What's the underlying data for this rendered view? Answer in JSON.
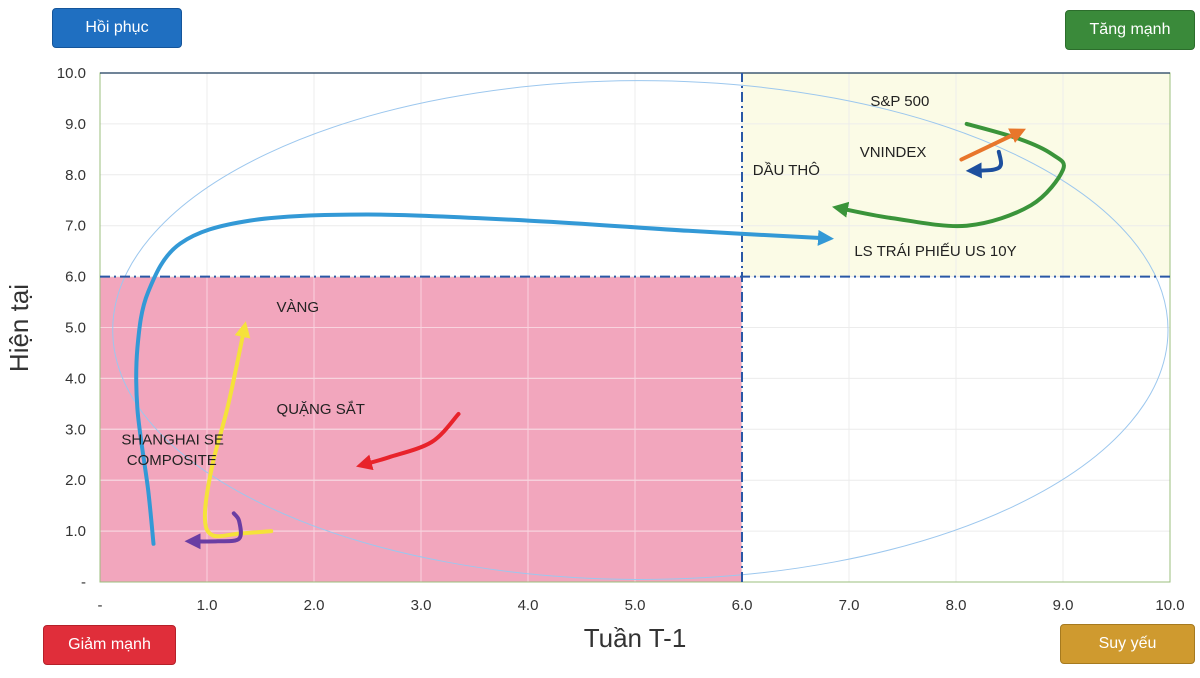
{
  "quadrants": {
    "top_left": "Hồi phục",
    "top_right": "Tăng mạnh",
    "bottom_left": "Giảm mạnh",
    "bottom_right": "Suy yếu"
  },
  "colors": {
    "top_left": "#1f6fc1",
    "top_right": "#3a8a3a",
    "bottom_left": "#e02e3a",
    "bottom_right": "#cf9a2f",
    "pink_region": "#f2a6bd",
    "yellow_region": "#fbfbe6"
  },
  "chart_data": {
    "type": "line",
    "xlabel": "Tuần T-1",
    "ylabel": "Hiện tại",
    "xlim": [
      0,
      10
    ],
    "ylim": [
      0,
      10
    ],
    "x_ticks": [
      "-",
      "1.0",
      "2.0",
      "3.0",
      "4.0",
      "5.0",
      "6.0",
      "7.0",
      "8.0",
      "9.0",
      "10.0"
    ],
    "y_ticks": [
      "-",
      "1.0",
      "2.0",
      "3.0",
      "4.0",
      "5.0",
      "6.0",
      "7.0",
      "8.0",
      "9.0",
      "10.0"
    ],
    "grid": true,
    "divider": 6.0,
    "series": [
      {
        "name": "DẦU THÔ",
        "color": "#3399d6",
        "points": [
          [
            0.5,
            0.75
          ],
          [
            0.45,
            1.8
          ],
          [
            0.35,
            3.4
          ],
          [
            0.35,
            4.6
          ],
          [
            0.45,
            5.7
          ],
          [
            0.75,
            6.65
          ],
          [
            1.4,
            7.1
          ],
          [
            2.5,
            7.22
          ],
          [
            4.0,
            7.1
          ],
          [
            5.5,
            6.9
          ],
          [
            6.8,
            6.75
          ]
        ]
      },
      {
        "name": "LS TRÁI PHIẾU US 10Y",
        "color": "#3a943a",
        "points": [
          [
            8.1,
            9.0
          ],
          [
            8.6,
            8.7
          ],
          [
            8.9,
            8.4
          ],
          [
            9.0,
            8.1
          ],
          [
            8.7,
            7.4
          ],
          [
            8.1,
            7.0
          ],
          [
            7.4,
            7.15
          ],
          [
            6.9,
            7.35
          ]
        ]
      },
      {
        "name": "S&P 500",
        "color": "#e8762b",
        "points": [
          [
            8.05,
            8.3
          ],
          [
            8.3,
            8.55
          ],
          [
            8.6,
            8.85
          ]
        ]
      },
      {
        "name": "VNINDEX",
        "color": "#1d4f9e",
        "points": [
          [
            8.4,
            8.45
          ],
          [
            8.42,
            8.2
          ],
          [
            8.35,
            8.1
          ],
          [
            8.15,
            8.08
          ]
        ]
      },
      {
        "name": "VÀNG",
        "color": "#f5e23a",
        "points": [
          [
            1.6,
            1.0
          ],
          [
            1.3,
            0.95
          ],
          [
            1.05,
            0.92
          ],
          [
            0.98,
            1.3
          ],
          [
            1.05,
            2.3
          ],
          [
            1.2,
            3.5
          ],
          [
            1.35,
            5.0
          ]
        ]
      },
      {
        "name": "QUẶNG SẮT",
        "color": "#e8232b",
        "points": [
          [
            3.35,
            3.3
          ],
          [
            3.1,
            2.75
          ],
          [
            2.7,
            2.45
          ],
          [
            2.45,
            2.3
          ]
        ]
      },
      {
        "name": "SHANGHAI SE COMPOSITE",
        "color": "#6a3da3",
        "points": [
          [
            1.25,
            1.35
          ],
          [
            1.3,
            1.2
          ],
          [
            1.3,
            0.85
          ],
          [
            1.1,
            0.8
          ],
          [
            0.85,
            0.8
          ]
        ]
      }
    ],
    "annotations": [
      {
        "label": "S&P 500",
        "x": 7.2,
        "y": 9.35
      },
      {
        "label": "VNINDEX",
        "x": 7.1,
        "y": 8.35
      },
      {
        "label": "DẦU THÔ",
        "x": 6.1,
        "y": 8.0
      },
      {
        "label": "LS TRÁI PHIẾU US 10Y",
        "x": 7.05,
        "y": 6.4
      },
      {
        "label": "VÀNG",
        "x": 1.65,
        "y": 5.3
      },
      {
        "label": "QUẶNG SẮT",
        "x": 1.65,
        "y": 3.3
      },
      {
        "label": "SHANGHAI SE",
        "x": 0.2,
        "y": 2.7
      },
      {
        "label": "COMPOSITE",
        "x": 0.25,
        "y": 2.3
      }
    ]
  }
}
